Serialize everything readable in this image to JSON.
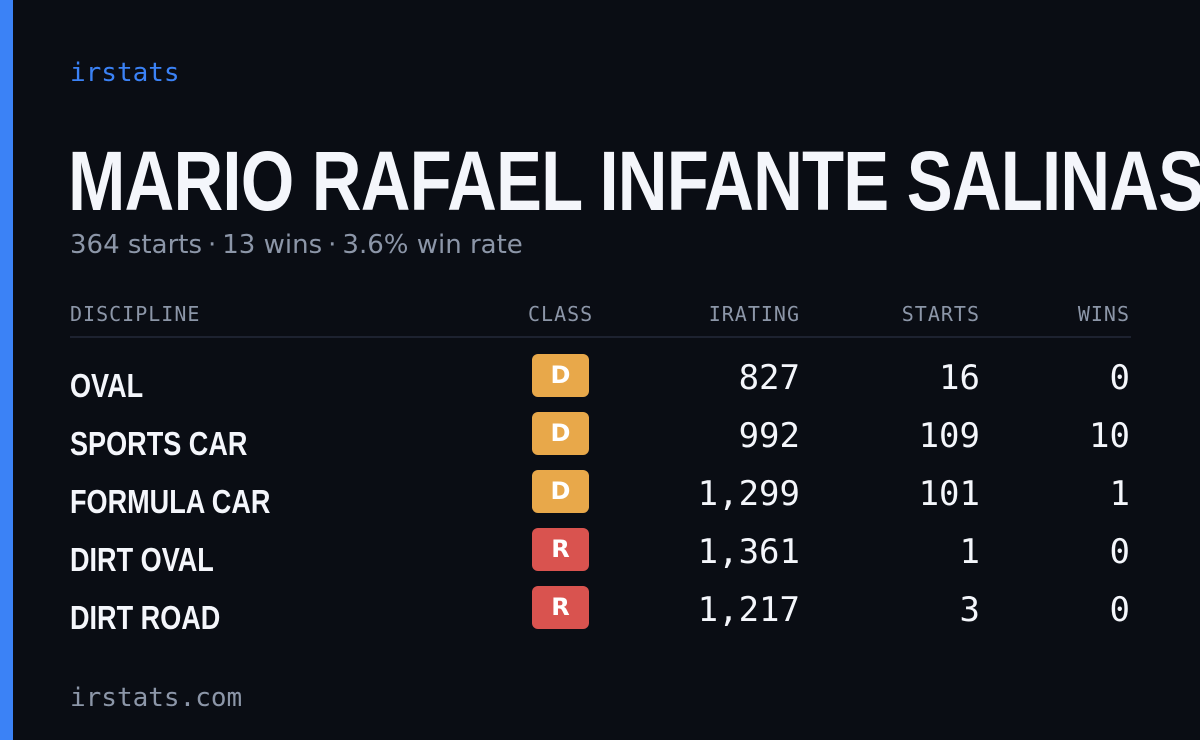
{
  "brand": "irstats",
  "driver": {
    "name": "MARIO RAFAEL INFANTE SALINAS",
    "starts_text": "364 starts",
    "wins_text": "13 wins",
    "win_rate_text": "3.6% win rate",
    "separator": "·"
  },
  "table": {
    "headers": {
      "discipline": "DISCIPLINE",
      "class": "CLASS",
      "irating": "IRATING",
      "starts": "STARTS",
      "wins": "WINS"
    },
    "rows": [
      {
        "discipline": "OVAL",
        "class": "D",
        "irating": "827",
        "starts": "16",
        "wins": "0"
      },
      {
        "discipline": "SPORTS CAR",
        "class": "D",
        "irating": "992",
        "starts": "109",
        "wins": "10"
      },
      {
        "discipline": "FORMULA CAR",
        "class": "D",
        "irating": "1,299",
        "starts": "101",
        "wins": "1"
      },
      {
        "discipline": "DIRT OVAL",
        "class": "R",
        "irating": "1,361",
        "starts": "1",
        "wins": "0"
      },
      {
        "discipline": "DIRT ROAD",
        "class": "R",
        "irating": "1,217",
        "starts": "3",
        "wins": "0"
      }
    ]
  },
  "class_colors": {
    "D": "#e8a84a",
    "R": "#d9534f"
  },
  "colors": {
    "accent": "#3b82f6",
    "background": "#0a0d14"
  },
  "footer": "irstats.com"
}
